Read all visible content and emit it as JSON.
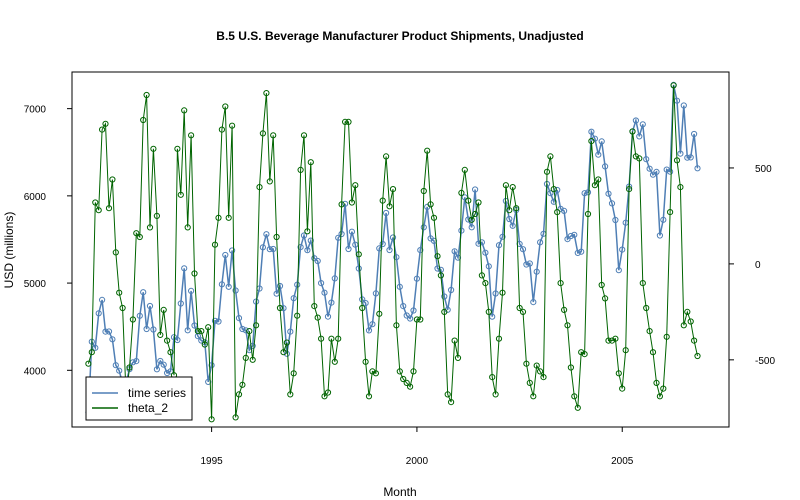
{
  "chart_data": {
    "type": "line",
    "title": "B.5  U.S. Beverage Manufacturer Product Shipments, Unadjusted",
    "xlabel": "Month",
    "ylabel": "USD (millions)",
    "x_start": 1992.0,
    "x_step": 0.0833333,
    "xlim": [
      1991.6,
      2007.6
    ],
    "ylim": [
      3350,
      7420
    ],
    "y2lim": [
      -850,
      1000
    ],
    "x_ticks": [
      1995,
      2000,
      2005
    ],
    "x_tick_labels": [
      "1995",
      "2000",
      "2005"
    ],
    "y_ticks": [
      4000,
      5000,
      6000,
      7000
    ],
    "y_tick_labels": [
      "4000",
      "5000",
      "6000",
      "7000"
    ],
    "y2_ticks": [
      -500,
      0,
      500
    ],
    "y2_tick_labels": [
      "-500",
      "0",
      "500"
    ],
    "grid": false,
    "legend_position": "bottom-left",
    "series": [
      {
        "name": "time series",
        "axis": "left",
        "color": "#4f7fb5",
        "values": [
          3519,
          4328,
          4258,
          4654,
          4807,
          4444,
          4445,
          4356,
          4059,
          3995,
          3847,
          3864,
          4013,
          4092,
          4105,
          4625,
          4896,
          4473,
          4737,
          4468,
          4012,
          4107,
          4064,
          3969,
          3987,
          4380,
          4348,
          4766,
          5170,
          4459,
          4910,
          4514,
          4392,
          4342,
          4322,
          3867,
          4058,
          4567,
          4559,
          4986,
          5322,
          4957,
          5373,
          4915,
          4599,
          4474,
          4459,
          4230,
          4280,
          4788,
          4938,
          5410,
          5560,
          5389,
          5391,
          4878,
          4967,
          4712,
          4189,
          4444,
          4827,
          4982,
          5412,
          5545,
          5377,
          5487,
          5285,
          5253,
          5000,
          4890,
          4616,
          4776,
          5054,
          5519,
          5563,
          5909,
          5391,
          5589,
          5440,
          5167,
          4813,
          4770,
          4458,
          4529,
          4882,
          5398,
          5448,
          5804,
          5379,
          5523,
          5297,
          4957,
          4736,
          4628,
          4594,
          4686,
          5050,
          5378,
          5640,
          5873,
          5512,
          5484,
          5167,
          5152,
          4846,
          4694,
          4921,
          5364,
          5291,
          5602,
          5984,
          5729,
          5640,
          6073,
          5451,
          5468,
          5348,
          5192,
          4614,
          4881,
          5434,
          5531,
          5941,
          5735,
          5657,
          5838,
          5449,
          5389,
          5213,
          5224,
          4782,
          5131,
          5468,
          5565,
          6136,
          6031,
          5932,
          6067,
          5852,
          5828,
          5504,
          5540,
          5553,
          5346,
          5360,
          6030,
          6041,
          6736,
          6655,
          6472,
          6624,
          6338,
          6025,
          5914,
          5723,
          5148,
          5384,
          5692,
          6106,
          6738,
          6864,
          6682,
          6820,
          6420,
          6311,
          6242,
          6275,
          5545,
          5725,
          6301,
          6277,
          7272,
          7091,
          6484,
          7036,
          6438,
          6441,
          6709,
          6316
        ]
      },
      {
        "name": "theta_2",
        "axis": "right",
        "color": "#006400",
        "values": [
          -520,
          -460,
          320,
          280,
          700,
          730,
          290,
          440,
          60,
          -150,
          -230,
          -690,
          -540,
          -290,
          160,
          140,
          750,
          880,
          190,
          600,
          250,
          -370,
          -240,
          -400,
          -460,
          -580,
          600,
          360,
          800,
          190,
          670,
          -50,
          -350,
          -350,
          -420,
          -330,
          -810,
          100,
          240,
          700,
          820,
          240,
          720,
          -800,
          -680,
          -630,
          -490,
          -350,
          -500,
          -320,
          400,
          680,
          890,
          430,
          670,
          140,
          -230,
          -460,
          -410,
          -680,
          -570,
          -270,
          490,
          670,
          170,
          530,
          -220,
          -280,
          -390,
          -690,
          -670,
          -390,
          -510,
          -390,
          310,
          740,
          740,
          320,
          410,
          50,
          -230,
          -510,
          -690,
          -560,
          -570,
          -260,
          330,
          560,
          300,
          390,
          -320,
          -560,
          -600,
          -620,
          -640,
          -560,
          -290,
          -290,
          380,
          590,
          310,
          240,
          40,
          -60,
          -250,
          -680,
          -720,
          -400,
          -490,
          370,
          490,
          330,
          230,
          260,
          320,
          -60,
          -100,
          -250,
          -590,
          -680,
          -390,
          -150,
          410,
          280,
          400,
          290,
          -230,
          -250,
          -520,
          -620,
          -690,
          -530,
          -560,
          -590,
          480,
          560,
          390,
          270,
          -100,
          -240,
          -320,
          -540,
          -690,
          -750,
          -460,
          -470,
          260,
          640,
          410,
          440,
          -110,
          -180,
          -400,
          -400,
          -390,
          -570,
          -650,
          -450,
          390,
          690,
          560,
          550,
          -100,
          -230,
          -350,
          -460,
          -620,
          -690,
          -650,
          -380,
          270,
          930,
          540,
          400,
          -320,
          -250,
          -300,
          -400,
          -480
        ]
      }
    ]
  }
}
